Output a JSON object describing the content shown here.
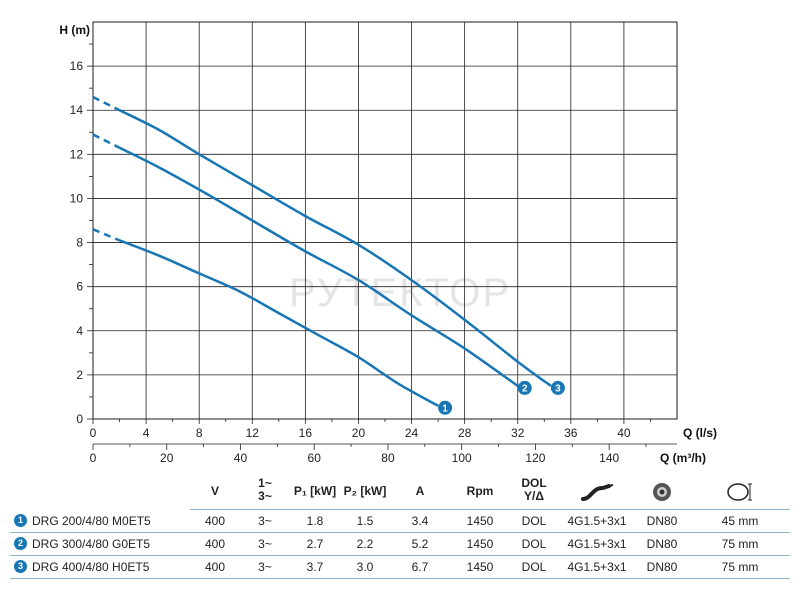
{
  "chart_data": {
    "type": "line",
    "ylabel": "H (m)",
    "xlabel": "Q (l/s)",
    "x2label": "Q (m³/h)",
    "xlim": [
      0,
      44
    ],
    "ylim": [
      0,
      18
    ],
    "x_ticks": [
      "0",
      "4",
      "8",
      "12",
      "16",
      "20",
      "24",
      "28",
      "32",
      "36",
      "40"
    ],
    "y_ticks": [
      "0",
      "2",
      "4",
      "6",
      "8",
      "10",
      "12",
      "14",
      "16"
    ],
    "x2_ticks": [
      "0",
      "20",
      "40",
      "60",
      "80",
      "100",
      "120",
      "140"
    ],
    "grid": true,
    "line_color": "#1776b3",
    "series": [
      {
        "name": "1",
        "x": [
          0,
          2,
          5,
          8,
          11,
          14,
          17,
          20,
          23,
          26
        ],
        "y": [
          8.6,
          8.1,
          7.4,
          6.6,
          5.8,
          4.8,
          3.8,
          2.8,
          1.6,
          0.6
        ]
      },
      {
        "name": "2",
        "x": [
          0,
          2,
          5,
          8,
          12,
          16,
          20,
          24,
          28,
          32
        ],
        "y": [
          12.9,
          12.3,
          11.4,
          10.4,
          9.0,
          7.6,
          6.3,
          4.7,
          3.2,
          1.5
        ]
      },
      {
        "name": "3",
        "x": [
          0,
          2,
          5,
          8,
          12,
          16,
          20,
          24,
          28,
          32,
          34.5
        ],
        "y": [
          14.6,
          14.0,
          13.1,
          12.0,
          10.6,
          9.2,
          7.9,
          6.3,
          4.5,
          2.6,
          1.5
        ]
      }
    ],
    "dashed_until_x": 2
  },
  "watermark": "РУТЕКТОР",
  "spec_table": {
    "headers": {
      "v": "V",
      "phase": [
        "1~",
        "3~"
      ],
      "p1": "P₁ [kW]",
      "p2": "P₂ [kW]",
      "a": "A",
      "rpm": "Rpm",
      "start": [
        "DOL",
        "Y/Δ"
      ],
      "cable_icon": "cable-icon",
      "flange_icon": "flange-icon",
      "passage_icon": "free-passage-icon"
    },
    "rows": [
      {
        "num": "1",
        "model": "DRG 200/4/80 M0ET5",
        "v": "400",
        "phase": "3~",
        "p1": "1.8",
        "p2": "1.5",
        "a": "3.4",
        "rpm": "1450",
        "start": "DOL",
        "cable": "4G1.5+3x1",
        "flange": "DN80",
        "passage": "45 mm"
      },
      {
        "num": "2",
        "model": "DRG 300/4/80 G0ET5",
        "v": "400",
        "phase": "3~",
        "p1": "2.7",
        "p2": "2.2",
        "a": "5.2",
        "rpm": "1450",
        "start": "DOL",
        "cable": "4G1.5+3x1",
        "flange": "DN80",
        "passage": "75 mm"
      },
      {
        "num": "3",
        "model": "DRG 400/4/80 H0ET5",
        "v": "400",
        "phase": "3~",
        "p1": "3.7",
        "p2": "3.0",
        "a": "6.7",
        "rpm": "1450",
        "start": "DOL",
        "cable": "4G1.5+3x1",
        "flange": "DN80",
        "passage": "75 mm"
      }
    ]
  }
}
